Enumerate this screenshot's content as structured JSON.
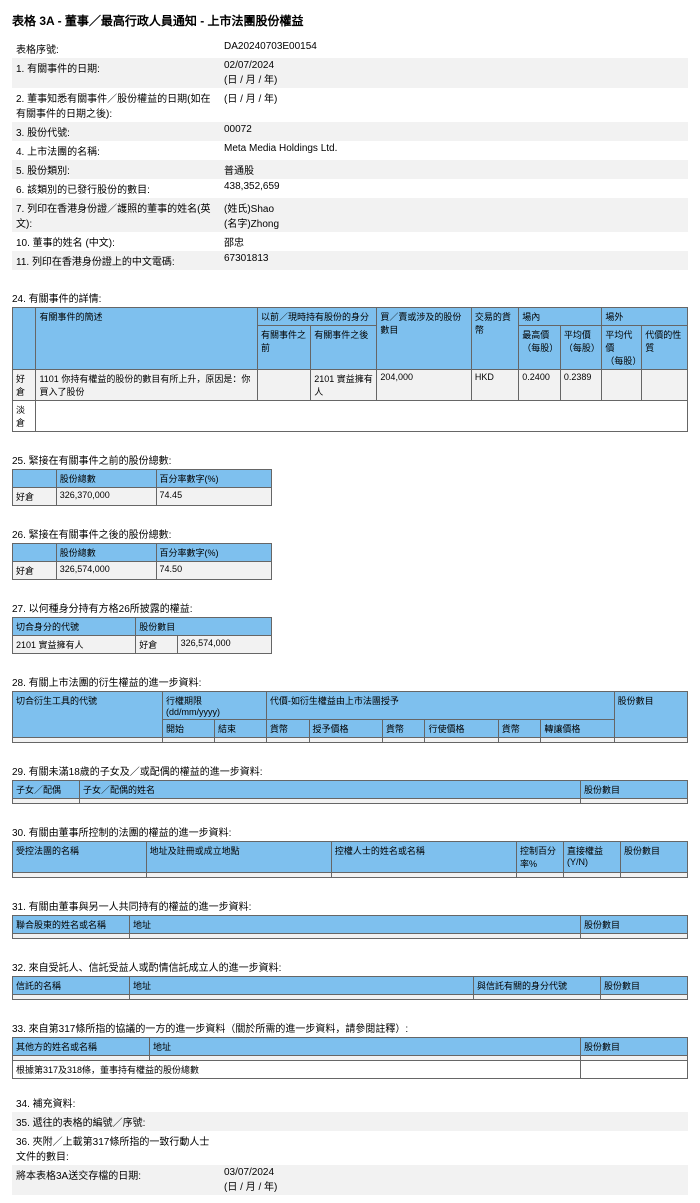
{
  "title": "表格 3A - 董事／最高行政人員通知 - 上市法團股份權益",
  "header": [
    {
      "label": "表格序號:",
      "value": "DA20240703E00154",
      "shade": false
    },
    {
      "label": "1. 有關事件的日期:",
      "value": "02/07/2024\n(日 / 月 / 年)",
      "shade": true
    },
    {
      "label": "2. 董事知悉有關事件／股份權益的日期(如在有關事件的日期之後):",
      "value": "(日 / 月 / 年)",
      "shade": false
    },
    {
      "label": "3. 股份代號:",
      "value": "00072",
      "shade": true
    },
    {
      "label": "4. 上市法團的名稱:",
      "value": "Meta Media Holdings Ltd.",
      "shade": false
    },
    {
      "label": "5. 股份類別:",
      "value": "普通股",
      "shade": true
    },
    {
      "label": "6. 該類別的已發行股份的數目:",
      "value": "438,352,659",
      "shade": false
    },
    {
      "label": "7. 列印在香港身份證／護照的董事的姓名(英文):",
      "value": "(姓氏)Shao\n(名字)Zhong",
      "shade": true
    },
    {
      "label": "10. 董事的姓名 (中文):",
      "value": "邵忠",
      "shade": false
    },
    {
      "label": "11. 列印在香港身份證上的中文電碼:",
      "value": "67301813",
      "shade": true
    }
  ],
  "s24": {
    "label": "24. 有關事件的詳情:",
    "heads": {
      "h1": "有關事件的簡述",
      "h2a": "以前／現時持有股份的身分",
      "h2b": "有關事件之前",
      "h2c": "有關事件之後",
      "h3": "買／賣或涉及的股份數目",
      "h4": "交易的貨幣",
      "h5": "場內",
      "h5a": "最高價\n（每股）",
      "h5b": "平均價\n（每股）",
      "h6": "場外",
      "h6a": "平均代價\n（每股）",
      "h6b": "代價的性質"
    },
    "row": {
      "side": "好倉",
      "code": "1101",
      "desc": "你持有權益的股份的數目有所上升，原因是：你買入了股份",
      "after": "2101 實益擁有人",
      "qty": "204,000",
      "ccy": "HKD",
      "high": "0.2400",
      "avg": "0.2389"
    },
    "side2": "淡倉"
  },
  "s25": {
    "label": "25. 緊接在有關事件之前的股份總數:",
    "h1": "股份總數",
    "h2": "百分率數字(%)",
    "side": "好倉",
    "v1": "326,370,000",
    "v2": "74.45"
  },
  "s26": {
    "label": "26. 緊接在有關事件之後的股份總數:",
    "h1": "股份總數",
    "h2": "百分率數字(%)",
    "side": "好倉",
    "v1": "326,574,000",
    "v2": "74.50"
  },
  "s27": {
    "label": "27. 以何種身分持有方格26所披露的權益:",
    "h1": "切合身分的代號",
    "h2": "股份數目",
    "c1": "2101 實益擁有人",
    "c2": "好倉",
    "c3": "326,574,000"
  },
  "s28": {
    "label": "28. 有關上市法團的衍生權益的進一步資料:",
    "h1": "切合衍生工具的代號",
    "h2": "行權期限\n(dd/mm/yyyy)",
    "h2a": "開始",
    "h2b": "結束",
    "h3": "代價-如衍生權益由上市法團授予",
    "h3a": "貨幣",
    "h3b": "授予價格",
    "h3c": "貨幣",
    "h3d": "行使價格",
    "h3e": "貨幣",
    "h3f": "轉讓價格",
    "h4": "股份數目"
  },
  "s29": {
    "label": "29. 有關未滿18歲的子女及／或配偶的權益的進一步資料:",
    "h1": "子女／配偶",
    "h2": "子女／配偶的姓名",
    "h3": "股份數目"
  },
  "s30": {
    "label": "30. 有關由董事所控制的法團的權益的進一步資料:",
    "h1": "受控法團的名稱",
    "h2": "地址及註冊或成立地點",
    "h3": "控權人士的姓名或名稱",
    "h4": "控制百分率%",
    "h5": "直接權益\n(Y/N)",
    "h6": "股份數目"
  },
  "s31": {
    "label": "31. 有關由董事與另一人共同持有的權益的進一步資料:",
    "h1": "聯合股東的姓名或名稱",
    "h2": "地址",
    "h3": "股份數目"
  },
  "s32": {
    "label": "32. 來自受託人、信託受益人或酌情信託成立人的進一步資料:",
    "h1": "信託的名稱",
    "h2": "地址",
    "h3": "與信託有關的身分代號",
    "h4": "股份數目"
  },
  "s33": {
    "label": "33. 來自第317條所指的協議的一方的進一步資料（關於所需的進一步資料，請參閱註釋）:",
    "h1": "其他方的姓名或名稱",
    "h2": "地址",
    "h3": "股份數目",
    "footer": "根據第317及318條，董事持有權益的股份總數"
  },
  "footer": [
    {
      "label": "34. 補充資料:",
      "value": "",
      "shade": false
    },
    {
      "label": "35. 遞往的表格的編號／序號:",
      "value": "",
      "shade": true
    },
    {
      "label": "36. 夾附／上載第317條所指的一致行動人士文件的數目:",
      "value": "",
      "shade": false
    },
    {
      "label": "將本表格3A送交存檔的日期:",
      "value": "03/07/2024\n(日 / 月 / 年)",
      "shade": true
    }
  ]
}
